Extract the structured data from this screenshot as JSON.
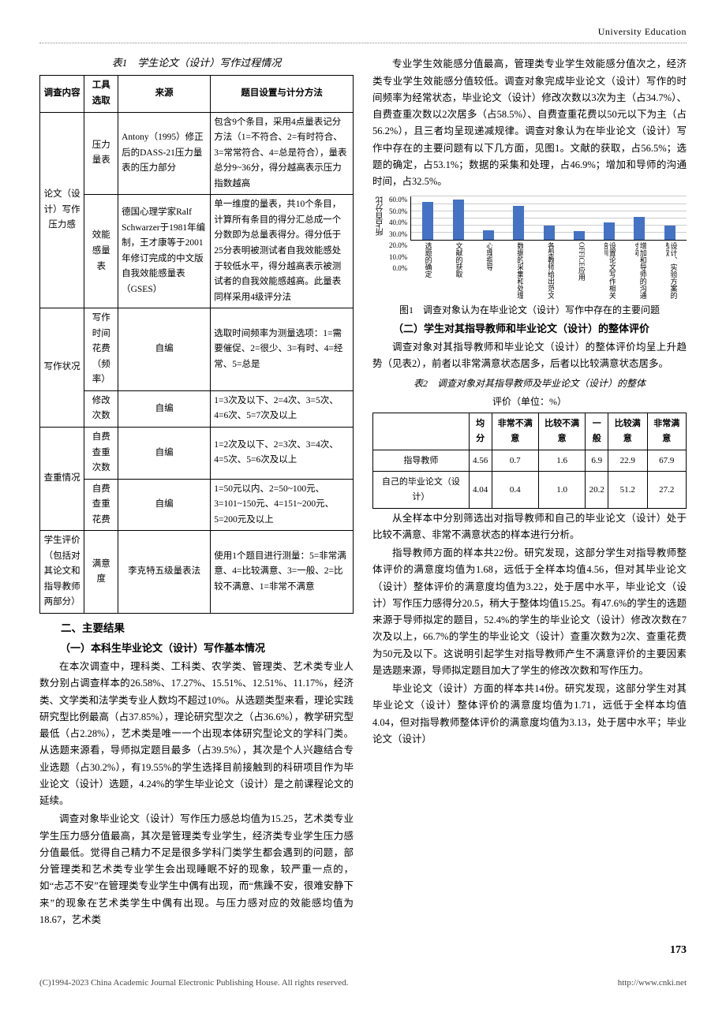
{
  "header": {
    "journal": "University Education"
  },
  "table1": {
    "caption": "表1　学生论文（设计）写作过程情况",
    "headers": [
      "调查内容",
      "工具选取",
      "来源",
      "题目设置与计分方法"
    ],
    "row1": {
      "c1": "论文（设计）写作压力感",
      "c2a": "压力量表",
      "c3a": "Antony（1995）修正后的DASS-21压力量表的压力部分",
      "c4a": "包含9个条目，采用4点量表记分方法（1=不符合、2=有时符合、3=常常符合、4=总是符合），量表总分9~36分，得分越高表示压力指数越高",
      "c2b": "效能感量表",
      "c3b": "德国心理学家Ralf Schwarzer于1981年编制，王才康等于2001年修订完成的中文版自我效能感量表（GSES）",
      "c4b": "单一维度的量表，共10个条目，计算所有条目的得分汇总成一个分数即为总量表得分。得分低于25分表明被测试者自我效能感处于较低水平，得分越高表示被测试者的自我效能感越高。此量表同样采用4级评分法"
    },
    "row2": {
      "c1": "写作状况",
      "c2a": "写作时间花费（频率）",
      "c3a": "自编",
      "c4a": "选取时间频率为测量选项：1=需要催促、2=很少、3=有时、4=经常、5=总是",
      "c2b": "修改次数",
      "c3b": "自编",
      "c4b": "1=3次及以下、2=4次、3=5次、4=6次、5=7次及以上"
    },
    "row3": {
      "c1": "查重情况",
      "c2a": "自费查重次数",
      "c3a": "自编",
      "c4a": "1=2次及以下、2=3次、3=4次、4=5次、5=6次及以上",
      "c2b": "自费查重花费",
      "c3b": "自编",
      "c4b": "1=50元以内、2=50~100元、3=101~150元、4=151~200元、5=200元及以上"
    },
    "row4": {
      "c1": "学生评价（包括对其论文和指导教师两部分）",
      "c2": "满意度",
      "c3": "李克特五级量表法",
      "c4": "使用1个题目进行测量：5=非常满意、4=比较满意、3=一般、2=比较不满意、1=非常不满意"
    }
  },
  "leftText": {
    "s1": "二、主要结果",
    "s1a": "（一）本科生毕业论文（设计）写作基本情况",
    "p1": "在本次调查中，理科类、工科类、农学类、管理类、艺术类专业人数分别占调查样本的26.58%、17.27%、15.51%、12.51%、11.17%，经济类、文学类和法学类专业人数均不超过10%。从选题类型来看，理论实践研究型比例最高（占37.85%），理论研究型次之（占36.6%），教学研究型最低（占2.28%），艺术类是唯一一个出现本体研究型论文的学科门类。从选题来源看，导师拟定题目最多（占39.5%），其次是个人兴趣结合专业选题（占30.2%），有19.55%的学生选择目前接触到的科研项目作为毕业论文（设计）选题，4.24%的学生毕业论文（设计）是之前课程论文的延续。",
    "p2": "调查对象毕业论文（设计）写作压力感总均值为15.25，艺术类专业学生压力感分值最高，其次是管理类专业学生，经济类专业学生压力感分值最低。觉得自己精力不足是很多学科门类学生都会遇到的问题，部分管理类和艺术类专业学生会出现睡眠不好的现象，较严重一点的，如“忐忑不安”在管理类专业学生中偶有出现，而“焦躁不安，很难安静下来”的现象在艺术类学生中偶有出现。与压力感对应的效能感均值为18.67，艺术类"
  },
  "rightText": {
    "p1": "专业学生效能感分值最高，管理类专业学生效能感分值次之，经济类专业学生效能感分值较低。调查对象完成毕业论文（设计）写作的时间频率为经常状态，毕业论文（设计）修改次数以3次为主（占34.7%）、自费查重次数以2次居多（占58.5%）、自费查重花费以50元以下为主（占56.2%），且三者均呈现递减规律。调查对象认为在毕业论文（设计）写作中存在的主要问题有以下几方面，见图1。文献的获取，占56.5%；选题的确定，占53.1%；数据的采集和处理，占46.9%；增加和导师的沟通时间，占32.5%。",
    "fig1_caption": "图1　调查对象认为在毕业论文（设计）写作中存在的主要问题",
    "s2": "（二）学生对其指导教师和毕业论文（设计）的整体评价",
    "p2": "调查对象对其指导教师和毕业论文（设计）的整体评价均呈上升趋势（见表2），前者以非常满意状态居多，后者以比较满意状态居多。",
    "table2_caption": "表2　调查对象对其指导教师及毕业论文（设计）的整体",
    "table2_unit": "评价（单位：%）",
    "p3": "从全样本中分别筛选出对指导教师和自己的毕业论文（设计）处于比较不满意、非常不满意状态的样本进行分析。",
    "p4": "指导教师方面的样本共22份。研究发现，这部分学生对指导教师整体评价的满意度均值为1.68，远低于全样本均值4.56，但对其毕业论文（设计）整体评价的满意度均值为3.22，处于居中水平，毕业论文（设计）写作压力感得分20.5，稍大于整体均值15.25。有47.6%的学生的选题来源于导师拟定的题目，52.4%的学生的毕业论文（设计）修改次数在7次及以上，66.7%的学生的毕业论文（设计）查重次数为2次、查重花费为50元及以下。这说明引起学生对指导教师产生不满意评价的主要因素是选题来源，导师拟定题目加大了学生的修改次数和写作压力。",
    "p5": "毕业论文（设计）方面的样本共14份。研究发现，这部分学生对其毕业论文（设计）整体评价的满意度均值为1.71，远低于全样本均值4.04，但对指导教师整体评价的满意度均值为3.13，处于居中水平；毕业论文（设计）"
  },
  "chart": {
    "yaxis_label": "所占百分比",
    "yticks": [
      "60.0%",
      "50.0%",
      "40.0%",
      "30.0%",
      "20.0%",
      "10.0%",
      "0.0%"
    ],
    "ymax": 60,
    "bar_color": "#4472c4",
    "grid_color": "#cccccc",
    "bars": [
      {
        "label": "选题的确定",
        "value": 53.1
      },
      {
        "label": "文献的获取",
        "value": 56.5
      },
      {
        "label": "心理指导",
        "value": 14.0
      },
      {
        "label": "数据的采集和处理",
        "value": 46.9
      },
      {
        "label": "各型教师给出范文",
        "value": 20.0
      },
      {
        "label": "OFFICE应用",
        "value": 12.0
      },
      {
        "label": "设置论文写作相关培训⋯",
        "value": 24.0
      },
      {
        "label": "增加和导师的沟通时间",
        "value": 32.5
      },
      {
        "label": "设计、实验方案的选取",
        "value": 20.0
      }
    ]
  },
  "table2": {
    "headers": [
      "",
      "均分",
      "非常不满意",
      "比较不满意",
      "一般",
      "比较满意",
      "非常满意"
    ],
    "rows": [
      [
        "指导教师",
        "4.56",
        "0.7",
        "1.6",
        "6.9",
        "22.9",
        "67.9"
      ],
      [
        "自己的毕业论文（设计）",
        "4.04",
        "0.4",
        "1.0",
        "20.2",
        "51.2",
        "27.2"
      ]
    ]
  },
  "page_no": "173",
  "footer": {
    "left": "(C)1994-2023 China Academic Journal Electronic Publishing House. All rights reserved.",
    "right": "http://www.cnki.net"
  }
}
